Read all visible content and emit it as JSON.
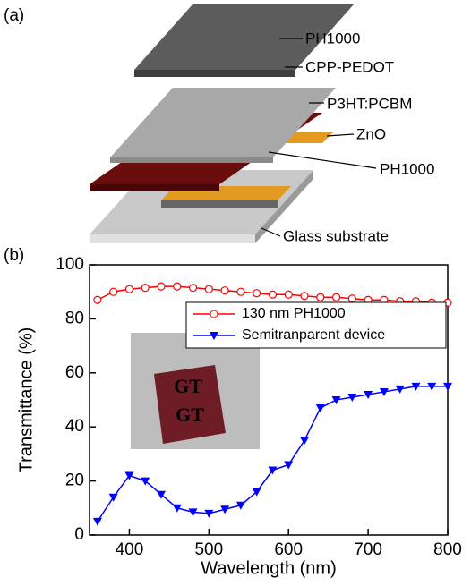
{
  "diagram": {
    "panel_label": "(a)",
    "layers": [
      "PH1000",
      "CPP-PEDOT",
      "P3HT:PCBM",
      "ZnO",
      "PH1000",
      "Glass substrate"
    ]
  },
  "chart_data": {
    "type": "line",
    "panel_label": "(b)",
    "x_label": "Wavelength (nm)",
    "y_label": "Transmittance (%)",
    "x": [
      360,
      380,
      400,
      420,
      440,
      460,
      480,
      500,
      520,
      540,
      560,
      580,
      600,
      620,
      640,
      660,
      680,
      700,
      720,
      740,
      760,
      780,
      800
    ],
    "series": [
      {
        "name": "130 nm PH1000",
        "color": "#ff0000",
        "marker": "circle",
        "values": [
          87,
          90,
          91,
          91.5,
          92,
          92,
          91.5,
          91,
          90.5,
          90,
          89.5,
          89,
          89,
          88.5,
          88,
          88,
          87.5,
          87,
          87,
          86.5,
          86.5,
          86,
          86
        ]
      },
      {
        "name": "Semitranparent device",
        "color": "#0000ff",
        "marker": "triangle-down",
        "values": [
          5,
          14,
          22,
          20,
          15,
          10,
          8.5,
          8,
          9.5,
          11,
          16,
          24,
          26,
          35,
          47,
          50,
          51,
          52,
          53,
          54,
          55,
          55,
          55
        ]
      }
    ],
    "inset_labels": [
      "GT",
      "GT"
    ],
    "xlim": [
      350,
      800
    ],
    "xticks": [
      400,
      500,
      600,
      700,
      800
    ],
    "ylim": [
      0,
      100
    ],
    "yticks": [
      0,
      20,
      40,
      60,
      80,
      100
    ]
  }
}
